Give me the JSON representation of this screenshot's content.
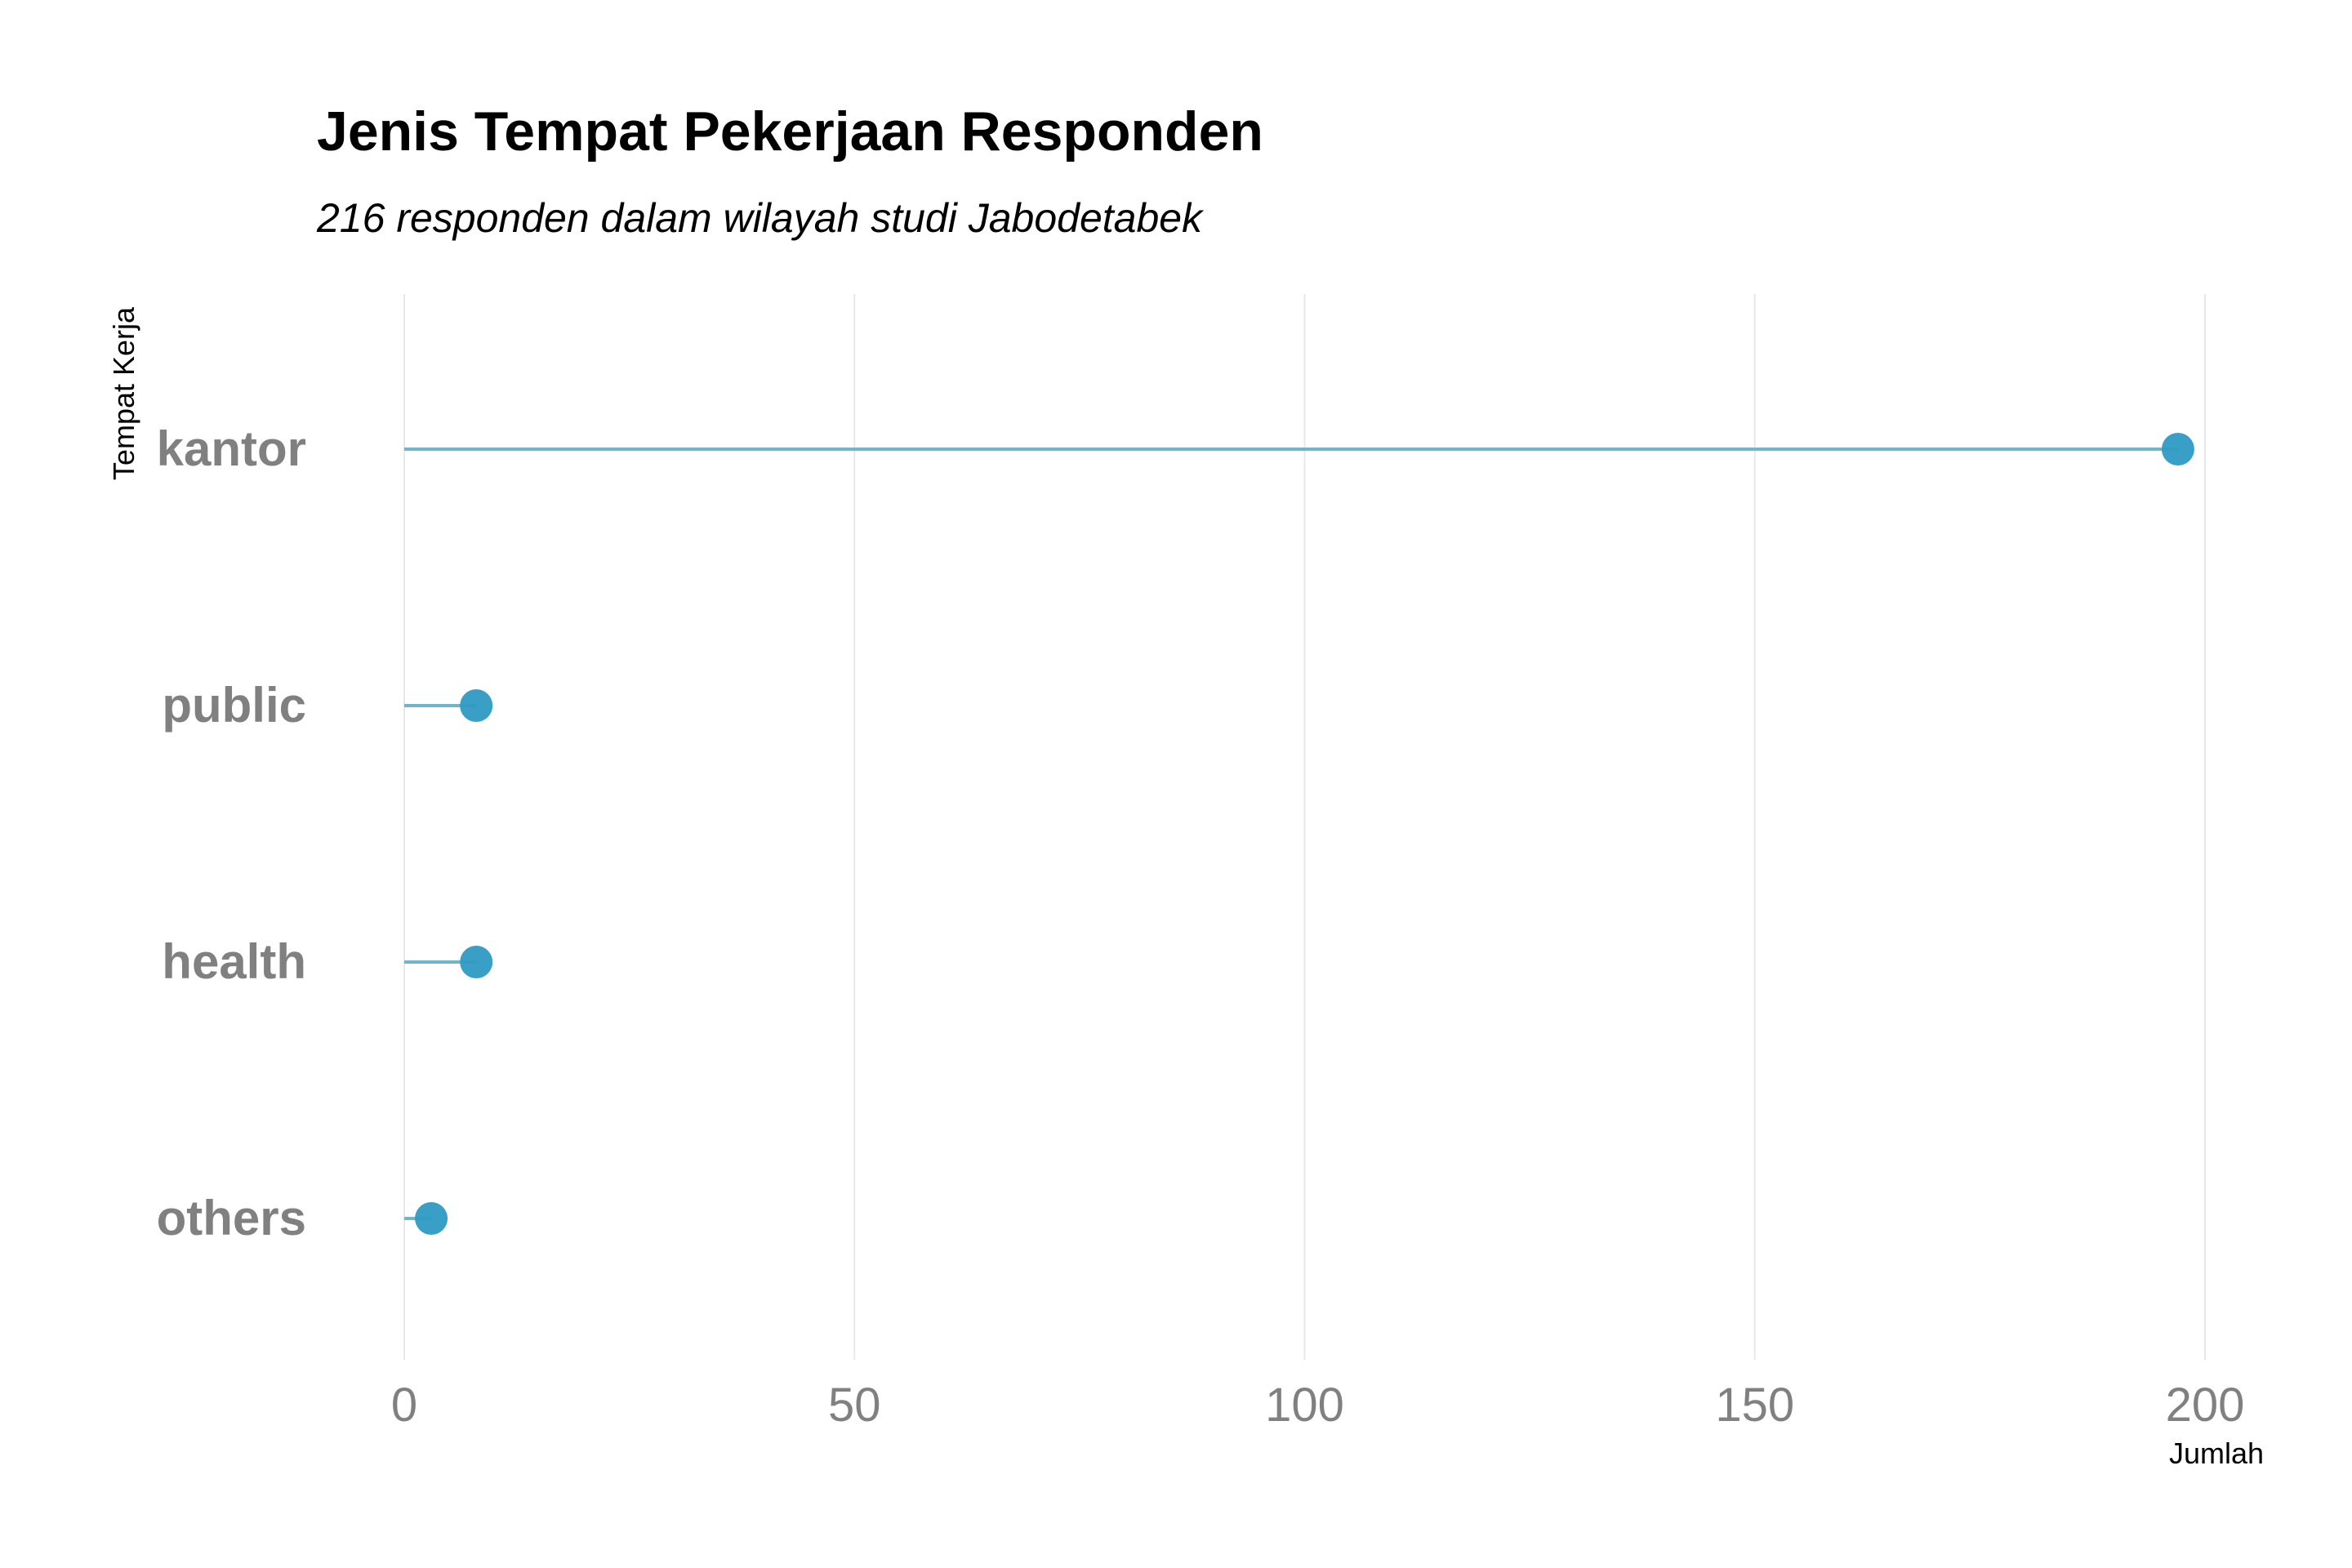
{
  "chart_data": {
    "type": "lollipop",
    "title": "Jenis Tempat Pekerjaan Responden",
    "subtitle": "216 responden dalam wilayah studi Jabodetabek",
    "xlabel": "Jumlah",
    "ylabel": "Tempat Kerja",
    "categories": [
      "kantor",
      "public",
      "health",
      "others"
    ],
    "values": [
      197,
      8,
      8,
      3
    ],
    "xlim": [
      0,
      200
    ],
    "xticks": [
      0,
      50,
      100,
      150,
      200
    ],
    "xtick_labels": [
      "0",
      "50",
      "100",
      "150",
      "200"
    ],
    "grid": "vertical major",
    "legend": "none",
    "colors": {
      "point": "#2E9AC4",
      "segment": "#6FB7C8",
      "category_text": "#808080",
      "tick_text": "#808080",
      "grid": "#e8e8e8"
    }
  }
}
